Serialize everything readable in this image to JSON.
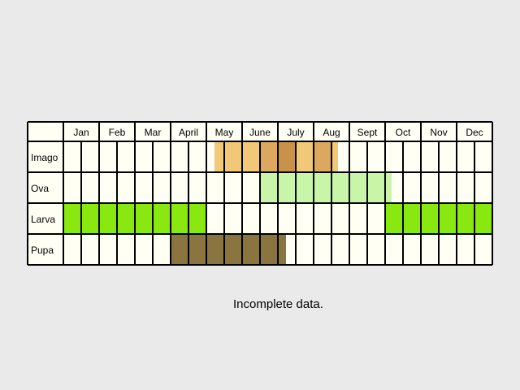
{
  "months": [
    "Jan",
    "Feb",
    "Mar",
    "April",
    "May",
    "June",
    "July",
    "Aug",
    "Sept",
    "Oct",
    "Nov",
    "Dec"
  ],
  "stages": [
    {
      "label": "Imago"
    },
    {
      "label": "Ova"
    },
    {
      "label": "Larva"
    },
    {
      "label": "Pupa"
    }
  ],
  "note": "Incomplete data.",
  "colors": {
    "background": "#eaeaea",
    "cell": "#fffff4",
    "grid": "#000000",
    "imago_light": "#f0c878",
    "imago_mid": "#dca860",
    "imago_dark": "#c8924a",
    "ova": "#c8f5a8",
    "larva": "#88e810",
    "pupa": "#8a7440"
  }
}
